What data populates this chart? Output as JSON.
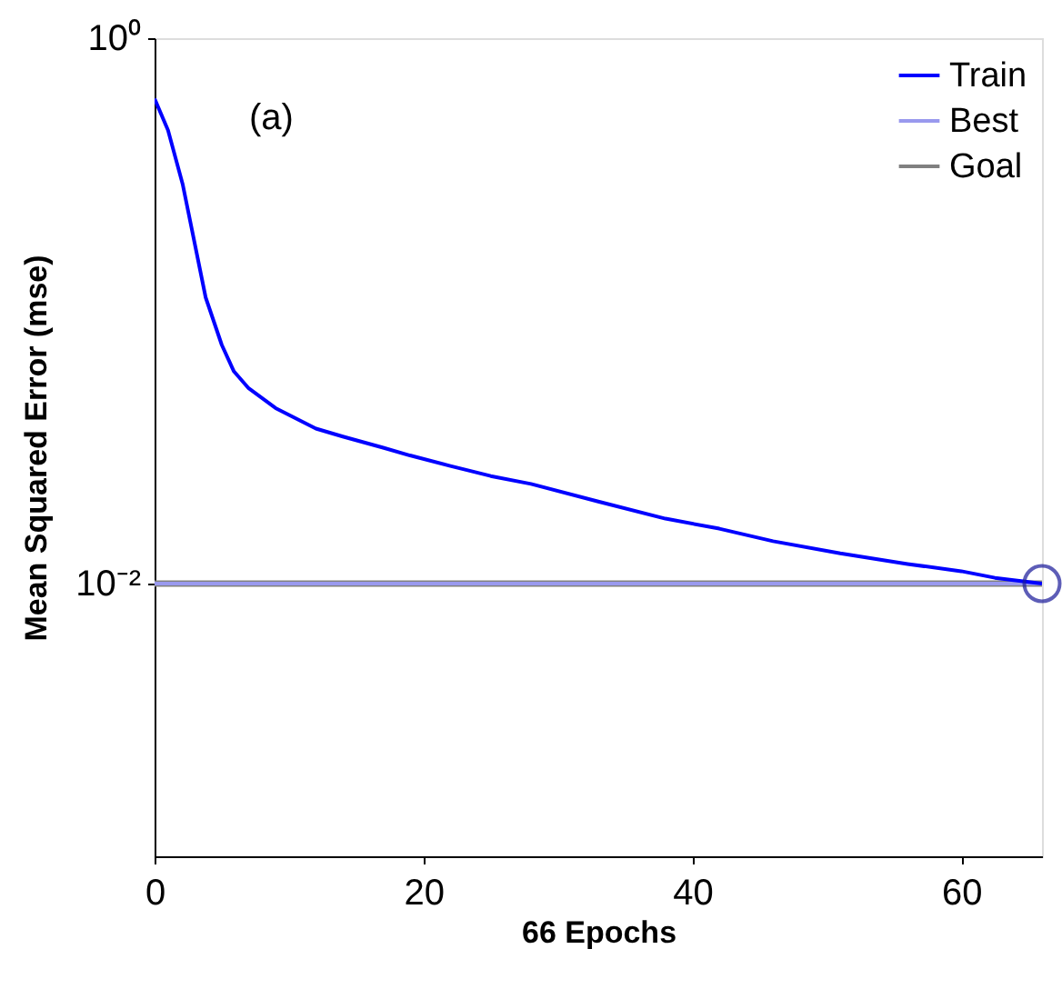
{
  "chart_data": {
    "type": "line",
    "xlabel": "66 Epochs",
    "ylabel": "Mean Squared Error  (mse)",
    "annotations": [
      "(a)"
    ],
    "log": true,
    "grid": false,
    "legend": "top right",
    "xlim": [
      0,
      66
    ],
    "xticks": [
      0,
      20,
      40,
      60
    ],
    "ylim": [
      0.001,
      1
    ],
    "yticks": [
      {
        "value": 1,
        "label": "10⁰"
      },
      {
        "value": 0.01,
        "label": "10⁻²"
      }
    ],
    "series": [
      {
        "name": "Train",
        "color": "#0000ff",
        "x": [
          0,
          1,
          2.1,
          3.8,
          5,
          5.9,
          7,
          9,
          12,
          14,
          17,
          19,
          22,
          25,
          28,
          33,
          38,
          42,
          46,
          51,
          56,
          60,
          62.5,
          66
        ],
        "values": [
          0.6,
          0.46,
          0.29,
          0.112,
          0.075,
          0.06,
          0.052,
          0.044,
          0.037,
          0.0346,
          0.0315,
          0.0295,
          0.027,
          0.0248,
          0.0232,
          0.02,
          0.0173,
          0.0159,
          0.0143,
          0.0129,
          0.0118,
          0.0111,
          0.0105,
          0.01
        ]
      },
      {
        "name": "Best",
        "color": "#9999ee",
        "x": [
          0,
          66
        ],
        "values": [
          0.01,
          0.01
        ]
      },
      {
        "name": "Goal",
        "color": "#808080",
        "x": [
          0,
          66
        ],
        "values": [
          0.01,
          0.01
        ]
      },
      {
        "type": "scatter",
        "marker": "circle",
        "color": "#1a1a99",
        "x": [
          66
        ],
        "values": [
          0.01
        ]
      }
    ]
  }
}
